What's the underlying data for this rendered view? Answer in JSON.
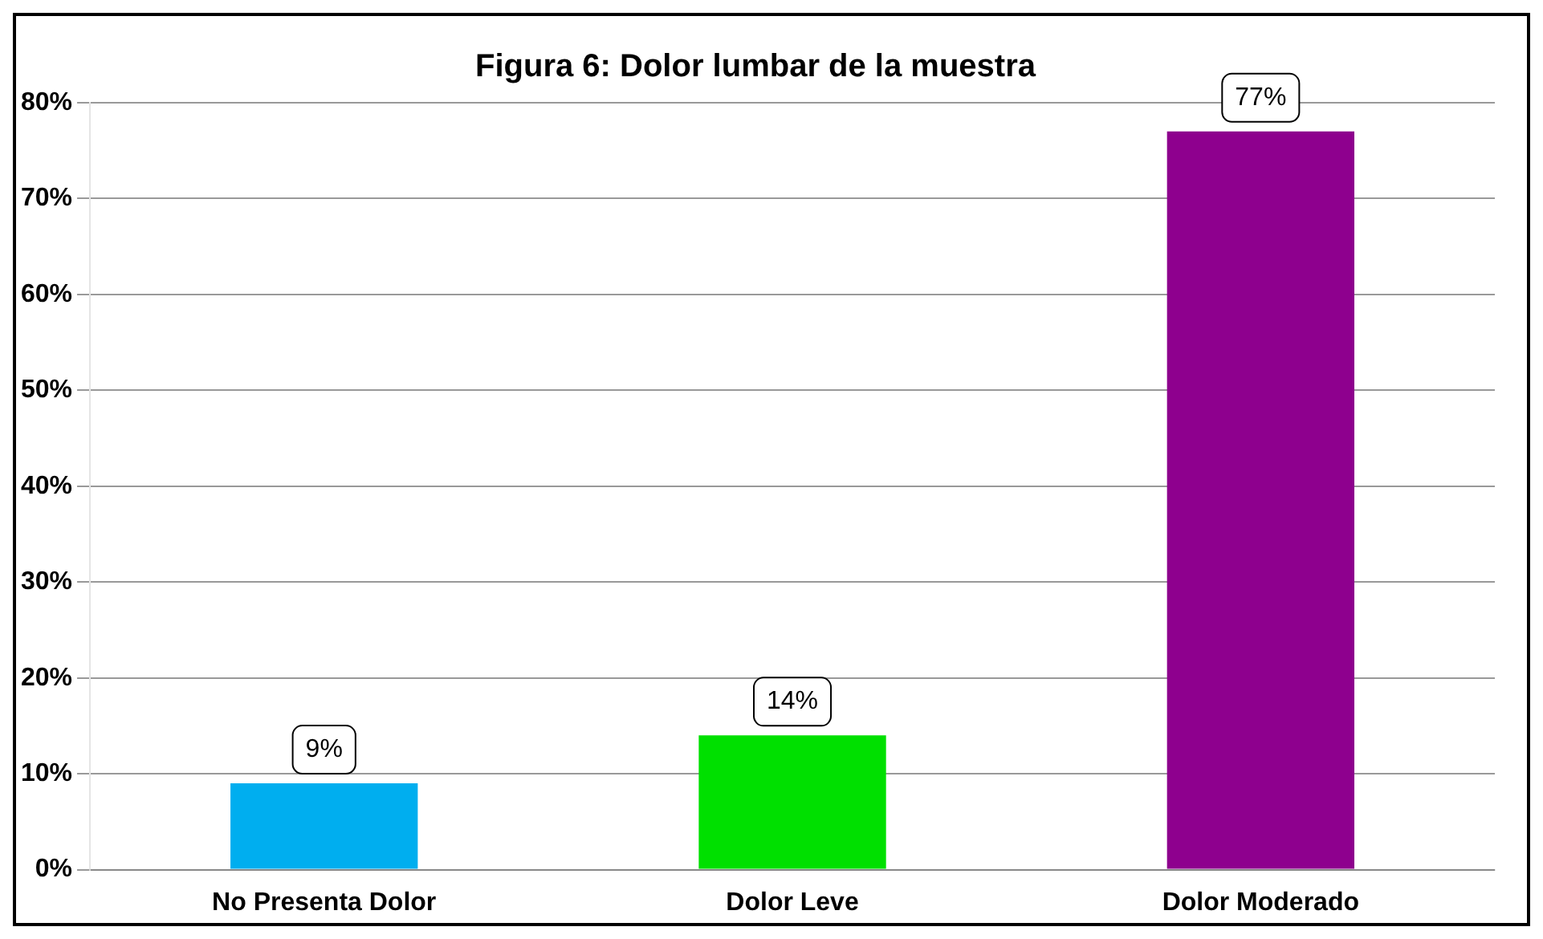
{
  "chart_data": {
    "type": "bar",
    "title": "Figura 6: Dolor lumbar de la muestra",
    "categories": [
      "No Presenta Dolor",
      "Dolor Leve",
      "Dolor Moderado"
    ],
    "values": [
      9,
      14,
      77
    ],
    "colors": [
      "#00aeef",
      "#00e000",
      "#8e008e"
    ],
    "ylim": [
      0,
      80
    ],
    "yticks": [
      {
        "value": 0,
        "label": "0%"
      },
      {
        "value": 10,
        "label": "10%"
      },
      {
        "value": 20,
        "label": "20%"
      },
      {
        "value": 30,
        "label": "30%"
      },
      {
        "value": 40,
        "label": "40%"
      },
      {
        "value": 50,
        "label": "50%"
      },
      {
        "value": 60,
        "label": "60%"
      },
      {
        "value": 70,
        "label": "70%"
      },
      {
        "value": 80,
        "label": "80%"
      }
    ],
    "value_labels": [
      "9%",
      "14%",
      "77%"
    ],
    "grid": "y",
    "legend": false
  }
}
